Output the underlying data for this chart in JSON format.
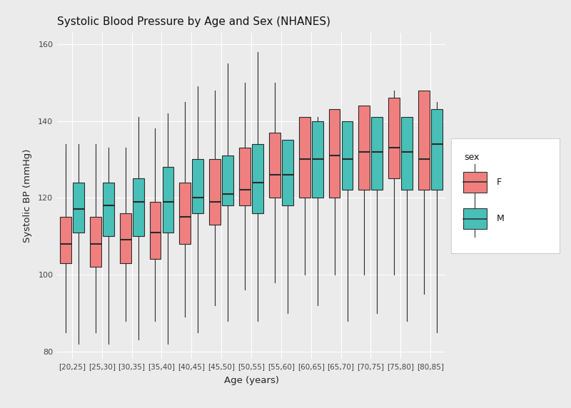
{
  "title": "Systolic Blood Pressure by Age and Sex (NHANES)",
  "xlabel": "Age (years)",
  "ylabel": "Systolic BP (mmHg)",
  "background_color": "#EBEBEB",
  "panel_color": "#FFFFFF",
  "grid_color": "#FFFFFF",
  "color_F": "#F08080",
  "color_M": "#48C0B8",
  "age_groups": [
    "[20,25]",
    "[25,30]",
    "[30,35]",
    "[35,40]",
    "[40,45]",
    "[45,50]",
    "[50,55]",
    "[55,60]",
    "[60,65]",
    "[65,70]",
    "[70,75]",
    "[75,80]",
    "[80,85]"
  ],
  "ylim": [
    78,
    163
  ],
  "yticks": [
    80,
    100,
    120,
    140,
    160
  ],
  "F": {
    "whislo": [
      85,
      85,
      88,
      88,
      89,
      92,
      96,
      98,
      100,
      100,
      100,
      100,
      95
    ],
    "q1": [
      103,
      102,
      103,
      104,
      108,
      113,
      118,
      120,
      120,
      120,
      122,
      125,
      122
    ],
    "med": [
      108,
      108,
      109,
      111,
      115,
      119,
      122,
      126,
      130,
      131,
      132,
      133,
      130
    ],
    "q3": [
      115,
      115,
      116,
      119,
      124,
      130,
      133,
      137,
      141,
      143,
      144,
      146,
      148
    ],
    "whishi": [
      134,
      134,
      133,
      138,
      145,
      148,
      150,
      150,
      141,
      143,
      144,
      148,
      148
    ]
  },
  "M": {
    "whislo": [
      82,
      82,
      83,
      82,
      85,
      88,
      88,
      90,
      92,
      88,
      90,
      88,
      85
    ],
    "q1": [
      111,
      110,
      110,
      111,
      116,
      118,
      116,
      118,
      120,
      122,
      122,
      122,
      122
    ],
    "med": [
      117,
      118,
      119,
      119,
      120,
      121,
      124,
      126,
      130,
      130,
      132,
      132,
      134
    ],
    "q3": [
      124,
      124,
      125,
      128,
      130,
      131,
      134,
      135,
      140,
      140,
      141,
      141,
      143
    ],
    "whishi": [
      134,
      133,
      141,
      142,
      149,
      155,
      158,
      135,
      141,
      140,
      141,
      141,
      145
    ]
  }
}
